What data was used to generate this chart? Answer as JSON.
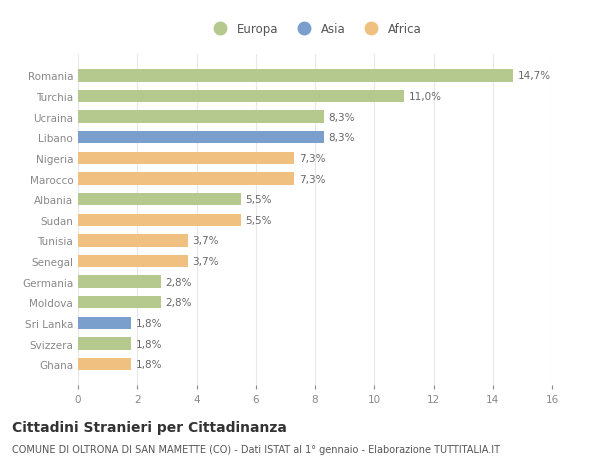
{
  "countries": [
    "Romania",
    "Turchia",
    "Ucraina",
    "Libano",
    "Nigeria",
    "Marocco",
    "Albania",
    "Sudan",
    "Tunisia",
    "Senegal",
    "Germania",
    "Moldova",
    "Sri Lanka",
    "Svizzera",
    "Ghana"
  ],
  "values": [
    14.7,
    11.0,
    8.3,
    8.3,
    7.3,
    7.3,
    5.5,
    5.5,
    3.7,
    3.7,
    2.8,
    2.8,
    1.8,
    1.8,
    1.8
  ],
  "labels": [
    "14,7%",
    "11,0%",
    "8,3%",
    "8,3%",
    "7,3%",
    "7,3%",
    "5,5%",
    "5,5%",
    "3,7%",
    "3,7%",
    "2,8%",
    "2,8%",
    "1,8%",
    "1,8%",
    "1,8%"
  ],
  "continents": [
    "Europa",
    "Europa",
    "Europa",
    "Asia",
    "Africa",
    "Africa",
    "Europa",
    "Africa",
    "Africa",
    "Africa",
    "Europa",
    "Europa",
    "Asia",
    "Europa",
    "Africa"
  ],
  "colors": {
    "Europa": "#b5c98e",
    "Asia": "#7b9fcc",
    "Africa": "#f0c080"
  },
  "legend_order": [
    "Europa",
    "Asia",
    "Africa"
  ],
  "xlim": [
    0,
    16
  ],
  "xticks": [
    0,
    2,
    4,
    6,
    8,
    10,
    12,
    14,
    16
  ],
  "title": "Cittadini Stranieri per Cittadinanza",
  "subtitle": "COMUNE DI OLTRONA DI SAN MAMETTE (CO) - Dati ISTAT al 1° gennaio - Elaborazione TUTTITALIA.IT",
  "bg_color": "#ffffff",
  "grid_color": "#e8e8e8",
  "bar_height": 0.6,
  "label_fontsize": 7.5,
  "title_fontsize": 10,
  "subtitle_fontsize": 7.0,
  "tick_fontsize": 7.5,
  "legend_fontsize": 8.5
}
